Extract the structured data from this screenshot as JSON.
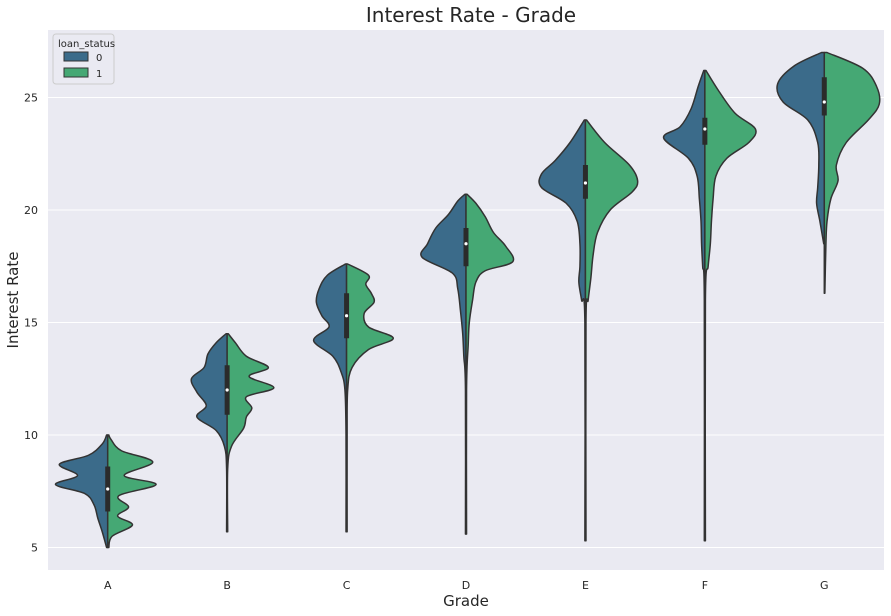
{
  "chart_data": {
    "type": "violin",
    "title": "Interest Rate - Grade",
    "xlabel": "Grade",
    "ylabel": "Interest Rate",
    "categories": [
      "A",
      "B",
      "C",
      "D",
      "E",
      "F",
      "G"
    ],
    "y_ticks": [
      5,
      10,
      15,
      20,
      25
    ],
    "ylim": [
      4,
      28
    ],
    "grid": true,
    "legend": {
      "title": "loan_status",
      "placement": "top-left",
      "entries": [
        {
          "label": "0",
          "color": "#3b6b8a"
        },
        {
          "label": "1",
          "color": "#45a874"
        }
      ]
    },
    "colors": {
      "background": "#eaeaf2",
      "grid": "#ffffff",
      "series_0": "#3b6b8a",
      "series_1": "#45a874",
      "outline": "#333333"
    },
    "series": [
      {
        "name": "0",
        "violins": [
          {
            "category": "A",
            "profile": [
              [
                5.0,
                0.02
              ],
              [
                5.7,
                0.1
              ],
              [
                6.3,
                0.18
              ],
              [
                6.9,
                0.25
              ],
              [
                7.4,
                0.42
              ],
              [
                7.8,
                0.95
              ],
              [
                8.2,
                0.55
              ],
              [
                8.7,
                0.88
              ],
              [
                9.1,
                0.35
              ],
              [
                9.6,
                0.1
              ],
              [
                10.0,
                0.02
              ]
            ]
          },
          {
            "category": "B",
            "profile": [
              [
                5.7,
                0.01
              ],
              [
                8.5,
                0.01
              ],
              [
                9.5,
                0.05
              ],
              [
                10.2,
                0.2
              ],
              [
                10.8,
                0.55
              ],
              [
                11.3,
                0.38
              ],
              [
                11.9,
                0.55
              ],
              [
                12.5,
                0.65
              ],
              [
                13.0,
                0.42
              ],
              [
                13.6,
                0.35
              ],
              [
                14.1,
                0.2
              ],
              [
                14.5,
                0.02
              ]
            ]
          },
          {
            "category": "C",
            "profile": [
              [
                5.7,
                0.01
              ],
              [
                10.0,
                0.01
              ],
              [
                12.0,
                0.03
              ],
              [
                12.8,
                0.1
              ],
              [
                13.5,
                0.25
              ],
              [
                14.2,
                0.6
              ],
              [
                14.8,
                0.32
              ],
              [
                15.3,
                0.45
              ],
              [
                15.9,
                0.55
              ],
              [
                16.5,
                0.5
              ],
              [
                17.1,
                0.35
              ],
              [
                17.6,
                0.02
              ]
            ]
          },
          {
            "category": "D",
            "profile": [
              [
                5.6,
                0.01
              ],
              [
                12.0,
                0.01
              ],
              [
                13.5,
                0.04
              ],
              [
                14.5,
                0.06
              ],
              [
                15.5,
                0.1
              ],
              [
                16.5,
                0.15
              ],
              [
                17.2,
                0.25
              ],
              [
                17.9,
                0.8
              ],
              [
                18.5,
                0.7
              ],
              [
                19.2,
                0.55
              ],
              [
                19.8,
                0.32
              ],
              [
                20.4,
                0.15
              ],
              [
                20.7,
                0.02
              ]
            ]
          },
          {
            "category": "E",
            "profile": [
              [
                5.3,
                0.01
              ],
              [
                15.0,
                0.01
              ],
              [
                16.0,
                0.07
              ],
              [
                16.8,
                0.12
              ],
              [
                17.5,
                0.1
              ],
              [
                18.5,
                0.1
              ],
              [
                19.5,
                0.15
              ],
              [
                20.3,
                0.35
              ],
              [
                21.0,
                0.8
              ],
              [
                21.6,
                0.8
              ],
              [
                22.2,
                0.55
              ],
              [
                23.0,
                0.28
              ],
              [
                24.0,
                0.02
              ]
            ]
          },
          {
            "category": "F",
            "profile": [
              [
                5.3,
                0.01
              ],
              [
                16.0,
                0.01
              ],
              [
                17.5,
                0.04
              ],
              [
                18.5,
                0.06
              ],
              [
                19.5,
                0.07
              ],
              [
                20.5,
                0.1
              ],
              [
                21.5,
                0.14
              ],
              [
                22.3,
                0.3
              ],
              [
                23.2,
                0.75
              ],
              [
                23.7,
                0.45
              ],
              [
                24.5,
                0.25
              ],
              [
                25.5,
                0.12
              ],
              [
                26.2,
                0.02
              ]
            ]
          },
          {
            "category": "G",
            "profile": [
              [
                18.5,
                0.01
              ],
              [
                19.5,
                0.08
              ],
              [
                20.3,
                0.14
              ],
              [
                21.0,
                0.12
              ],
              [
                22.0,
                0.1
              ],
              [
                23.0,
                0.12
              ],
              [
                24.0,
                0.3
              ],
              [
                24.8,
                0.75
              ],
              [
                25.6,
                0.85
              ],
              [
                26.4,
                0.55
              ],
              [
                27.0,
                0.05
              ]
            ]
          }
        ]
      },
      {
        "name": "1",
        "violins": [
          {
            "category": "A",
            "profile": [
              [
                5.0,
                0.02
              ],
              [
                5.5,
                0.08
              ],
              [
                6.0,
                0.45
              ],
              [
                6.4,
                0.18
              ],
              [
                6.8,
                0.38
              ],
              [
                7.3,
                0.2
              ],
              [
                7.8,
                0.88
              ],
              [
                8.2,
                0.3
              ],
              [
                8.8,
                0.82
              ],
              [
                9.3,
                0.25
              ],
              [
                9.8,
                0.06
              ],
              [
                10.0,
                0.02
              ]
            ]
          },
          {
            "category": "B",
            "profile": [
              [
                5.7,
                0.01
              ],
              [
                8.5,
                0.01
              ],
              [
                9.5,
                0.08
              ],
              [
                10.3,
                0.3
              ],
              [
                10.8,
                0.35
              ],
              [
                11.2,
                0.45
              ],
              [
                11.7,
                0.35
              ],
              [
                12.1,
                0.85
              ],
              [
                12.6,
                0.4
              ],
              [
                13.0,
                0.75
              ],
              [
                13.5,
                0.35
              ],
              [
                14.1,
                0.15
              ],
              [
                14.5,
                0.02
              ]
            ]
          },
          {
            "category": "C",
            "profile": [
              [
                5.7,
                0.01
              ],
              [
                10.0,
                0.01
              ],
              [
                12.0,
                0.02
              ],
              [
                13.0,
                0.1
              ],
              [
                13.8,
                0.4
              ],
              [
                14.3,
                0.85
              ],
              [
                14.8,
                0.4
              ],
              [
                15.4,
                0.32
              ],
              [
                15.9,
                0.5
              ],
              [
                16.3,
                0.45
              ],
              [
                16.7,
                0.35
              ],
              [
                17.1,
                0.4
              ],
              [
                17.6,
                0.02
              ]
            ]
          },
          {
            "category": "D",
            "profile": [
              [
                5.6,
                0.01
              ],
              [
                12.0,
                0.01
              ],
              [
                14.0,
                0.04
              ],
              [
                15.0,
                0.06
              ],
              [
                16.0,
                0.12
              ],
              [
                16.8,
                0.18
              ],
              [
                17.3,
                0.35
              ],
              [
                17.7,
                0.85
              ],
              [
                18.4,
                0.72
              ],
              [
                19.0,
                0.5
              ],
              [
                19.7,
                0.35
              ],
              [
                20.3,
                0.18
              ],
              [
                20.7,
                0.02
              ]
            ]
          },
          {
            "category": "E",
            "profile": [
              [
                5.3,
                0.01
              ],
              [
                15.0,
                0.01
              ],
              [
                16.0,
                0.05
              ],
              [
                17.0,
                0.1
              ],
              [
                18.0,
                0.14
              ],
              [
                19.0,
                0.22
              ],
              [
                20.0,
                0.45
              ],
              [
                20.8,
                0.85
              ],
              [
                21.3,
                0.95
              ],
              [
                22.0,
                0.8
              ],
              [
                23.0,
                0.35
              ],
              [
                24.0,
                0.02
              ]
            ]
          },
          {
            "category": "F",
            "profile": [
              [
                5.3,
                0.01
              ],
              [
                16.0,
                0.01
              ],
              [
                17.5,
                0.06
              ],
              [
                18.5,
                0.1
              ],
              [
                19.5,
                0.12
              ],
              [
                20.5,
                0.15
              ],
              [
                21.5,
                0.2
              ],
              [
                22.3,
                0.4
              ],
              [
                23.0,
                0.8
              ],
              [
                23.6,
                0.92
              ],
              [
                24.3,
                0.55
              ],
              [
                25.3,
                0.25
              ],
              [
                26.2,
                0.02
              ]
            ]
          },
          {
            "category": "G",
            "profile": [
              [
                16.3,
                0.01
              ],
              [
                18.5,
                0.03
              ],
              [
                19.5,
                0.05
              ],
              [
                20.5,
                0.12
              ],
              [
                21.3,
                0.25
              ],
              [
                22.0,
                0.22
              ],
              [
                23.0,
                0.4
              ],
              [
                24.0,
                0.8
              ],
              [
                24.7,
                1.0
              ],
              [
                25.5,
                0.95
              ],
              [
                26.3,
                0.7
              ],
              [
                27.0,
                0.05
              ]
            ]
          }
        ]
      }
    ],
    "boxes": [
      {
        "category": "A",
        "q1": 6.6,
        "median": 7.6,
        "q3": 8.6
      },
      {
        "category": "B",
        "q1": 10.9,
        "median": 12.0,
        "q3": 13.1
      },
      {
        "category": "C",
        "q1": 14.3,
        "median": 15.3,
        "q3": 16.3
      },
      {
        "category": "D",
        "q1": 17.5,
        "median": 18.5,
        "q3": 19.2
      },
      {
        "category": "E",
        "q1": 20.5,
        "median": 21.2,
        "q3": 22.0
      },
      {
        "category": "F",
        "q1": 22.9,
        "median": 23.6,
        "q3": 24.1
      },
      {
        "category": "G",
        "q1": 24.2,
        "median": 24.8,
        "q3": 25.9
      }
    ]
  }
}
